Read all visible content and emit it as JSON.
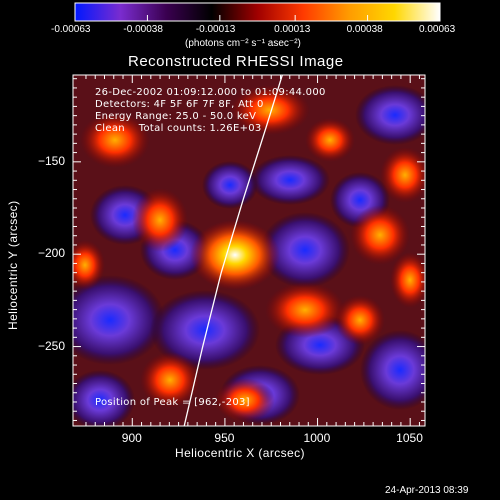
{
  "chart_data": {
    "type": "heatmap",
    "title": "Reconstructed RHESSI Image",
    "xlabel": "Heliocentric X (arcsec)",
    "ylabel": "Heliocentric Y (arcsec)",
    "xlim": [
      868,
      1058
    ],
    "ylim": [
      -293,
      -103
    ],
    "x_ticks": [
      "900",
      "950",
      "1000",
      "1050"
    ],
    "x_tick_values": [
      900,
      950,
      1000,
      1050
    ],
    "y_ticks": [
      "-150",
      "-200",
      "-250"
    ],
    "y_tick_values": [
      -150,
      -200,
      -250
    ],
    "colorbar": {
      "range": [
        -0.00063,
        0.00063
      ],
      "ticks": [
        "-0.00063",
        "-0.00038",
        "-0.00013",
        "0.00013",
        "0.00038",
        "0.00063"
      ],
      "tick_values": [
        -0.00063,
        -0.00038,
        -0.00013,
        0.00013,
        0.00038,
        0.00063
      ],
      "unit": "(photons cm⁻² s⁻¹ asec⁻²)",
      "colors": [
        "#0018ff",
        "#7a2ccf",
        "#3a0050",
        "#000000",
        "#a00000",
        "#ff3a00",
        "#ff9b00",
        "#ffd700",
        "#ffffff"
      ]
    },
    "annotations": [
      "26-Dec-2002 01:09:12.000 to 01:09:44.000",
      "Detectors: 4F 5F 6F 7F 8F, Att 0",
      "Energy Range: 25.0 - 50.0 keV",
      "Clean    Total counts: 1.26E+03"
    ],
    "peak_label": "Position of Peak = [962,-203]",
    "peak": [
      962,
      -203
    ],
    "limb_points": [
      [
        928,
        -293
      ],
      [
        938,
        -250
      ],
      [
        948,
        -210
      ],
      [
        960,
        -170
      ],
      [
        972,
        -132
      ],
      [
        981,
        -103
      ]
    ]
  },
  "footer": {
    "timestamp": "24-Apr-2013 08:39"
  }
}
